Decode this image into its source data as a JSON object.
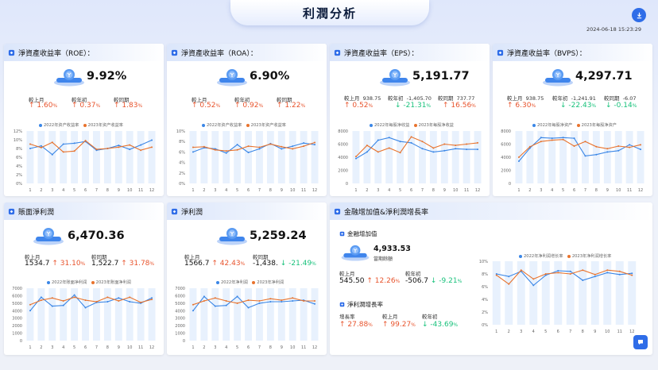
{
  "title": "利潤分析",
  "timestamp": "2024-06-18 15:23:29",
  "colors": {
    "blue": "#3a86e6",
    "orange": "#e8732d",
    "red": "#e8542d",
    "green": "#19c27c",
    "band": "#e8f1fd"
  },
  "icons": {
    "download": "download-icon",
    "header": "cube-icon",
    "coin": "coin-stack-icon",
    "chat": "chat-icon"
  },
  "cards": {
    "roe": {
      "title": "淨資產收益率（ROE）：",
      "value": "9.92%",
      "stats": [
        {
          "label": "較上月",
          "value": "1.60",
          "pct": "%"
        },
        {
          "label": "較年初",
          "value": "0.37",
          "pct": "%"
        },
        {
          "label": "較同期",
          "value": "1.83",
          "pct": "%"
        }
      ],
      "legend": [
        "2022年资产收益率",
        "2023年资产收益率"
      ]
    },
    "roa": {
      "title": "淨資產收益率（ROA）：",
      "value": "6.90%",
      "stats": [
        {
          "label": "較上月",
          "value": "0.52",
          "pct": "%"
        },
        {
          "label": "較年初",
          "value": "0.92",
          "pct": "%"
        },
        {
          "label": "較同期",
          "value": "1.22",
          "pct": "%"
        }
      ],
      "legend": [
        "2022年资产收益率",
        "2023年资产收益率"
      ]
    },
    "eps": {
      "title": "淨資產收益率（EPS）：",
      "value": "5,191.77",
      "stats": [
        {
          "label": "較上月",
          "num": "938.75",
          "value": "0.52",
          "pct": "%"
        },
        {
          "label": "較年初",
          "num": "-1,405.70",
          "value": "-21.31",
          "pct": "%"
        },
        {
          "label": "較同期",
          "num": "737.77",
          "value": "16.56",
          "pct": "%"
        }
      ],
      "legend": [
        "2022年每股净收益",
        "2023年每股净收益"
      ]
    },
    "bvps": {
      "title": "淨資產收益率（BVPS）：",
      "value": "4,297.71",
      "stats": [
        {
          "label": "較上月",
          "num": "938.75",
          "value": "6.30",
          "pct": "%"
        },
        {
          "label": "較年初",
          "num": "-1,241.91",
          "value": "-22.43",
          "pct": "%"
        },
        {
          "label": "較同期",
          "num": "-6.07",
          "value": "-0.14",
          "pct": "%"
        }
      ],
      "legend": [
        "2022年每股净资产",
        "2023年每股净资产"
      ]
    },
    "np1": {
      "title": "賬面淨利潤",
      "value": "6,470.36",
      "stats": [
        {
          "label": "較上月",
          "num": "1534.7",
          "value": "31.10",
          "pct": "%"
        },
        {
          "label": "較同期",
          "num": "1,522.7",
          "value": "31.78",
          "pct": "%"
        }
      ],
      "legend": [
        "2022年账面净利润",
        "2023年账面净利润"
      ]
    },
    "np2": {
      "title": "淨利潤",
      "value": "5,259.24",
      "stats": [
        {
          "label": "較上月",
          "num": "1566.7",
          "value": "42.43",
          "pct": "%"
        },
        {
          "label": "較同期",
          "num": "-1,438.",
          "value": "-21.49",
          "pct": "%"
        }
      ],
      "legend": [
        "2022年净利润",
        "2023年净利润"
      ]
    },
    "growth": {
      "title": "金融增加值&淨利潤增長率",
      "sub1": "金融增加值",
      "sub1_value": "4,933.53",
      "sub1_caption": "當期餘額",
      "stats1": [
        {
          "label": "較上月",
          "num": "545.50",
          "value": "12.26",
          "pct": "%"
        },
        {
          "label": "較年初",
          "num": "-506.7",
          "value": "-9.21",
          "pct": "%"
        }
      ],
      "sub2": "淨利潤增長率",
      "stats2": [
        {
          "label": "增長率",
          "value": "27.88",
          "pct": "%"
        },
        {
          "label": "較上月",
          "value": "99.27",
          "pct": "%"
        },
        {
          "label": "較年初",
          "value": "-43.69",
          "pct": "%"
        }
      ],
      "legend": [
        "2022年净利润增长率",
        "2023年净利润增长率"
      ]
    }
  },
  "chart_data": [
    {
      "type": "line",
      "x": [
        1,
        2,
        3,
        4,
        5,
        6,
        7,
        8,
        9,
        10,
        11,
        12
      ],
      "y_ticks": [
        "0%",
        "2%",
        "4%",
        "6%",
        "8%",
        "10%",
        "12%"
      ],
      "ylim": [
        0,
        12
      ],
      "series": [
        {
          "name": "2022年资产收益率",
          "values": [
            8.0,
            8.6,
            6.6,
            9.0,
            9.2,
            9.6,
            7.6,
            8.0,
            8.7,
            7.8,
            8.8,
            9.9
          ]
        },
        {
          "name": "2023年资产收益率",
          "values": [
            9.0,
            8.2,
            9.4,
            7.2,
            7.4,
            9.8,
            7.8,
            8.0,
            8.3,
            8.8,
            7.6,
            8.3
          ]
        }
      ]
    },
    {
      "type": "line",
      "x": [
        1,
        2,
        3,
        4,
        5,
        6,
        7,
        8,
        9,
        10,
        11,
        12
      ],
      "y_ticks": [
        "0%",
        "2%",
        "4%",
        "6%",
        "8%",
        "10%"
      ],
      "ylim": [
        0,
        10
      ],
      "series": [
        {
          "name": "2022年资产收益率",
          "values": [
            6.0,
            6.8,
            6.6,
            5.8,
            7.4,
            5.9,
            6.6,
            7.6,
            6.6,
            7.1,
            7.7,
            7.4
          ]
        },
        {
          "name": "2023年资产收益率",
          "values": [
            6.9,
            7.0,
            6.4,
            6.2,
            6.4,
            7.1,
            6.9,
            7.5,
            7.0,
            6.6,
            7.1,
            7.8
          ]
        }
      ]
    },
    {
      "type": "line",
      "x": [
        1,
        2,
        3,
        4,
        5,
        6,
        7,
        8,
        9,
        10,
        11,
        12
      ],
      "y_ticks": [
        "0",
        "2000",
        "4000",
        "6000",
        "8000"
      ],
      "ylim": [
        0,
        8000
      ],
      "series": [
        {
          "name": "2022年每股净收益",
          "values": [
            3800,
            4800,
            6600,
            7000,
            6400,
            6200,
            5300,
            4800,
            5000,
            5300,
            5200,
            5200
          ]
        },
        {
          "name": "2023年每股净收益",
          "values": [
            4100,
            5800,
            4800,
            5400,
            4700,
            7100,
            6400,
            5400,
            6000,
            5800,
            6000,
            6200
          ]
        }
      ]
    },
    {
      "type": "line",
      "x": [
        1,
        2,
        3,
        4,
        5,
        6,
        7,
        8,
        9,
        10,
        11,
        12
      ],
      "y_ticks": [
        "0",
        "2000",
        "4000",
        "6000",
        "8000"
      ],
      "ylim": [
        0,
        8000
      ],
      "series": [
        {
          "name": "2022年每股净资产",
          "values": [
            3400,
            5400,
            7000,
            6900,
            7000,
            6900,
            4200,
            4400,
            4800,
            5000,
            5900,
            5200
          ]
        },
        {
          "name": "2023年每股净资产",
          "values": [
            4000,
            5600,
            6400,
            6600,
            6700,
            5700,
            6400,
            5600,
            5300,
            5700,
            5500,
            5900
          ]
        }
      ]
    },
    {
      "type": "line",
      "x": [
        1,
        2,
        3,
        4,
        5,
        6,
        7,
        8,
        9,
        10,
        11,
        12
      ],
      "y_ticks": [
        "0",
        "1000",
        "2000",
        "3000",
        "4000",
        "5000",
        "6000",
        "7000"
      ],
      "ylim": [
        0,
        7000
      ],
      "series": [
        {
          "name": "2022年账面净利润",
          "values": [
            4000,
            5800,
            4600,
            4700,
            6100,
            4400,
            5100,
            5200,
            5700,
            5200,
            5000,
            5700
          ]
        },
        {
          "name": "2023年账面净利润",
          "values": [
            4800,
            5400,
            5700,
            5300,
            5800,
            5400,
            5200,
            5800,
            5300,
            5800,
            5100,
            5500
          ]
        }
      ]
    },
    {
      "type": "line",
      "x": [
        1,
        2,
        3,
        4,
        5,
        6,
        7,
        8,
        9,
        10,
        11,
        12
      ],
      "y_ticks": [
        "0",
        "1000",
        "2000",
        "3000",
        "4000",
        "5000",
        "6000",
        "7000"
      ],
      "ylim": [
        0,
        7000
      ],
      "series": [
        {
          "name": "2022年净利润",
          "values": [
            4000,
            5900,
            4600,
            4700,
            5900,
            4400,
            5000,
            5200,
            5200,
            5300,
            5400,
            4900
          ]
        },
        {
          "name": "2023年净利润",
          "values": [
            4800,
            5300,
            5700,
            5300,
            5000,
            5400,
            5300,
            5600,
            5400,
            5700,
            5300,
            5300
          ]
        }
      ]
    },
    {
      "type": "line",
      "x": [
        1,
        2,
        3,
        4,
        5,
        6,
        7,
        8,
        9,
        10,
        11,
        12
      ],
      "y_ticks": [
        "0%",
        "2%",
        "4%",
        "6%",
        "8%",
        "10%"
      ],
      "ylim": [
        0,
        10
      ],
      "series": [
        {
          "name": "2022年净利润增长率",
          "values": [
            8.0,
            7.6,
            8.4,
            6.2,
            7.8,
            8.5,
            8.4,
            7.0,
            7.6,
            8.2,
            7.9,
            8.1
          ]
        },
        {
          "name": "2023年净利润增长率",
          "values": [
            7.8,
            6.4,
            8.6,
            7.2,
            8.0,
            8.2,
            8.0,
            8.6,
            7.9,
            8.6,
            8.4,
            7.8
          ]
        }
      ]
    }
  ]
}
